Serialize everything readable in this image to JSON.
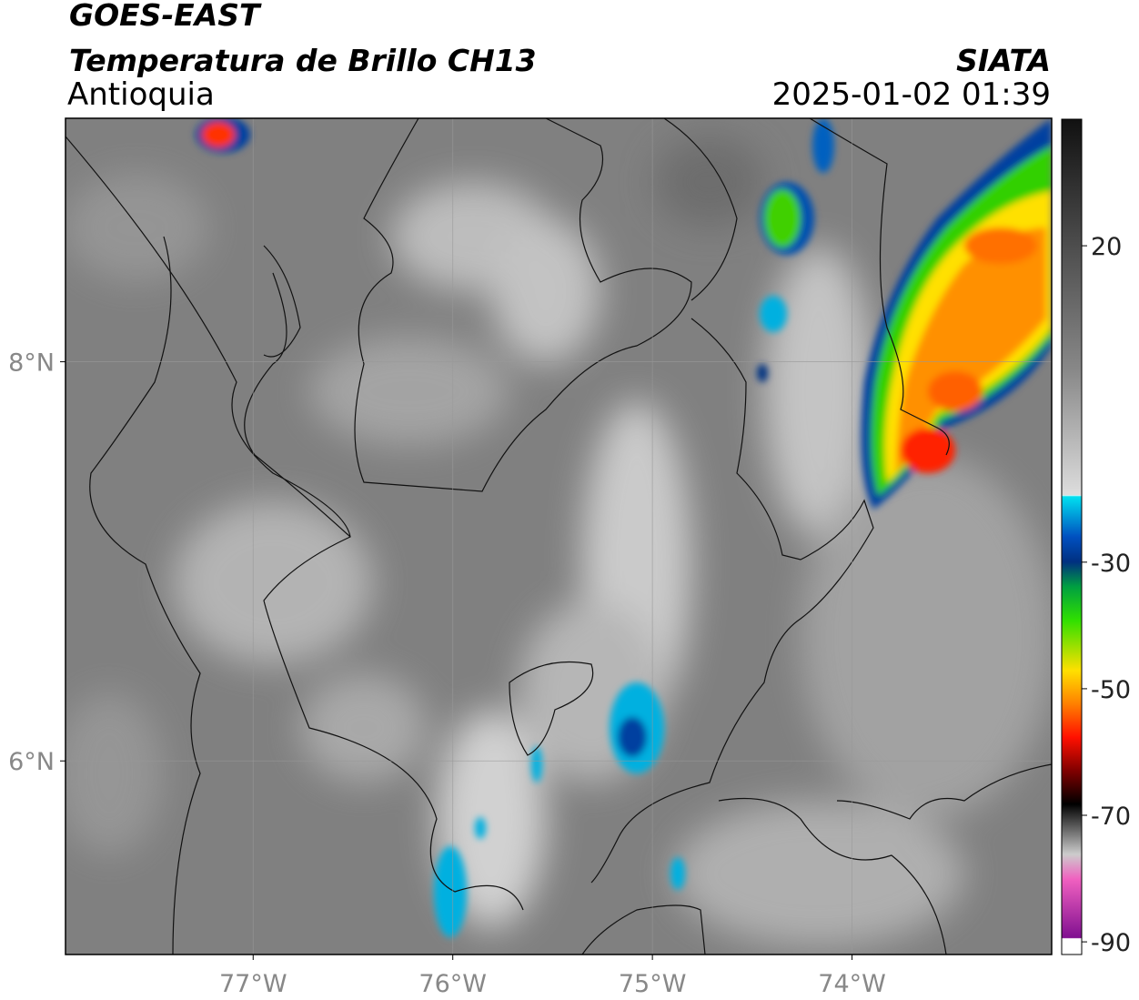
{
  "header": {
    "title": "GOES-EAST",
    "subtitle": "Temperatura de Brillo CH13",
    "region": "Antioquia",
    "source": "SIATA",
    "datetime": "2025-01-02 01:39"
  },
  "map": {
    "xlim": [
      -77.94,
      -73.0
    ],
    "ylim": [
      5.03,
      9.22
    ],
    "xticks": [
      {
        "value": -77,
        "label": "77°W"
      },
      {
        "value": -76,
        "label": "76°W"
      },
      {
        "value": -75,
        "label": "75°W"
      },
      {
        "value": -74,
        "label": "74°W"
      }
    ],
    "yticks": [
      {
        "value": 6,
        "label": "6°N"
      },
      {
        "value": 8,
        "label": "8°N"
      }
    ],
    "grid": true
  },
  "colorbar": {
    "clim": [
      -92,
      40
    ],
    "ticks": [
      20,
      -30,
      -50,
      -70,
      -90
    ]
  }
}
